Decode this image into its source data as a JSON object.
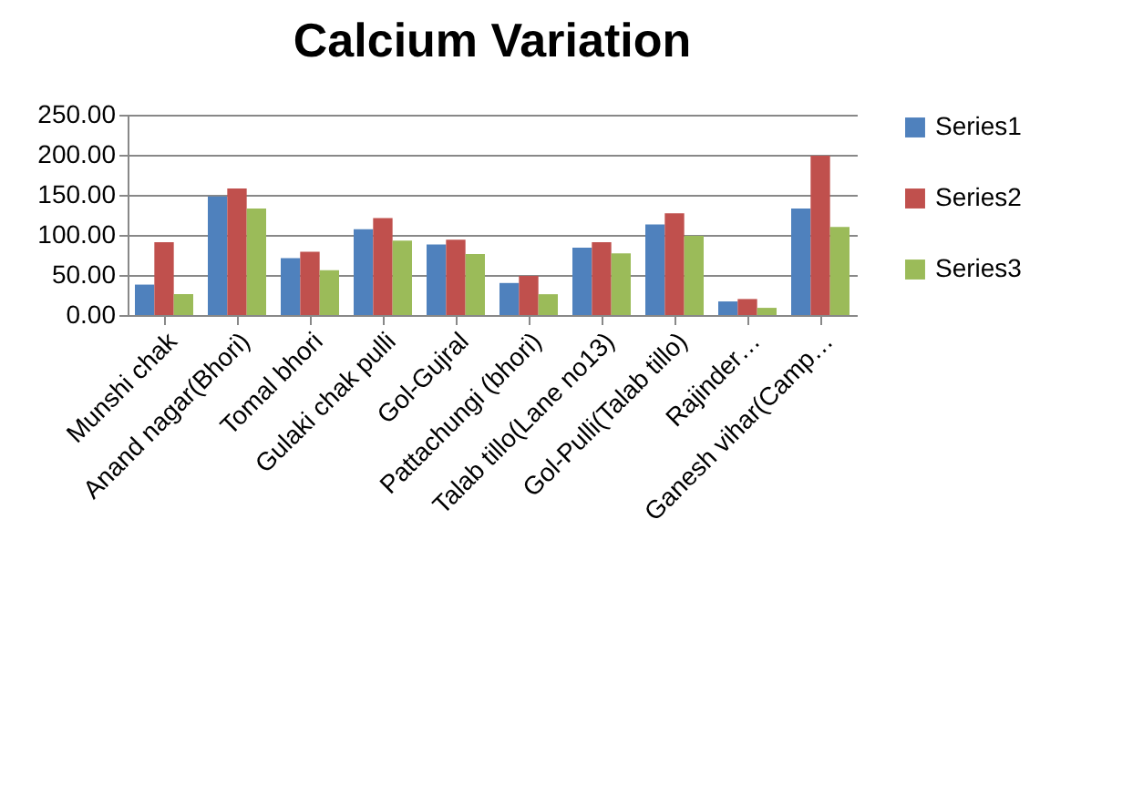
{
  "chart_data": {
    "type": "bar",
    "title": "Calcium Variation",
    "categories": [
      "Munshi chak",
      "Anand nagar(Bhori)",
      "Tomal bhori",
      "Gulaki chak pulli",
      "Gol-Gujral",
      "Pattachungi (bhori)",
      "Talab tillo(Lane no13)",
      "Gol-Pulli(Talab tillo)",
      "Rajinder…",
      "Ganesh vihar(Camp…"
    ],
    "series": [
      {
        "name": "Series1",
        "color": "#4f81bd",
        "values": [
          38,
          148,
          71,
          107,
          88,
          40,
          84,
          113,
          17,
          133
        ]
      },
      {
        "name": "Series2",
        "color": "#c0504d",
        "values": [
          91,
          158,
          79,
          121,
          94,
          49,
          91,
          127,
          20,
          199
        ]
      },
      {
        "name": "Series3",
        "color": "#9bbb59",
        "values": [
          26,
          133,
          56,
          93,
          76,
          26,
          77,
          99,
          9,
          110
        ]
      }
    ],
    "ylim": [
      0,
      250
    ],
    "yticks": [
      {
        "value": 0,
        "label": "0.00"
      },
      {
        "value": 50,
        "label": "50.00"
      },
      {
        "value": 100,
        "label": "100.00"
      },
      {
        "value": 150,
        "label": "150.00"
      },
      {
        "value": 200,
        "label": "200.00"
      },
      {
        "value": 250,
        "label": "250.00"
      }
    ],
    "grid": "y",
    "legend": "right"
  }
}
